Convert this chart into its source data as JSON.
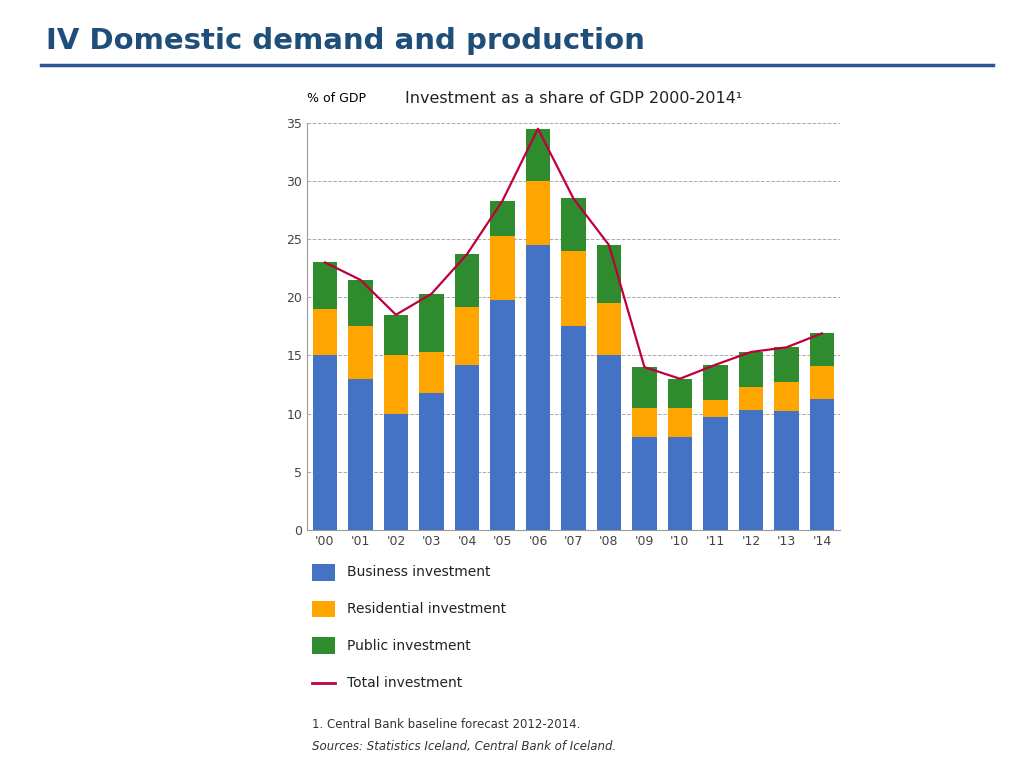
{
  "title": "Investment as a share of GDP 2000-2014¹",
  "ylabel": "% of GDP",
  "years": [
    "'00",
    "'01",
    "'02",
    "'03",
    "'04",
    "'05",
    "'06",
    "'07",
    "'08",
    "'09",
    "'10",
    "'11",
    "'12",
    "'13",
    "'14"
  ],
  "business": [
    15.0,
    13.0,
    10.0,
    11.8,
    14.2,
    19.8,
    24.5,
    17.5,
    15.0,
    8.0,
    8.0,
    9.7,
    10.3,
    10.2,
    11.3
  ],
  "residential": [
    4.0,
    4.5,
    5.0,
    3.5,
    5.0,
    5.5,
    5.5,
    6.5,
    4.5,
    2.5,
    2.5,
    1.5,
    2.0,
    2.5,
    2.8
  ],
  "public": [
    4.0,
    4.0,
    3.5,
    5.0,
    4.5,
    3.0,
    4.5,
    4.5,
    5.0,
    3.5,
    2.5,
    3.0,
    3.0,
    3.0,
    2.8
  ],
  "total": [
    23.0,
    21.5,
    18.5,
    20.3,
    23.7,
    28.3,
    34.5,
    28.5,
    24.5,
    14.0,
    13.0,
    14.2,
    15.3,
    15.7,
    16.9
  ],
  "color_business": "#4472C4",
  "color_residential": "#FFA500",
  "color_public": "#2E8B2E",
  "color_total": "#C0003C",
  "ylim": [
    0,
    35
  ],
  "yticks": [
    0,
    5,
    10,
    15,
    20,
    25,
    30,
    35
  ],
  "legend_labels": [
    "Business investment",
    "Residential investment",
    "Public investment",
    "Total investment"
  ],
  "footnote1": "1. Central Bank baseline forecast 2012-2014.",
  "footnote2": "Sources: Statistics Iceland, Central Bank of Iceland.",
  "main_title": "IV Domestic demand and production",
  "bar_width": 0.7,
  "background_color": "#FFFFFF",
  "chart_bg": "#FFFFFF",
  "grid_color": "#AAAAAA",
  "title_color": "#1F4E79",
  "axis_color": "#555555"
}
